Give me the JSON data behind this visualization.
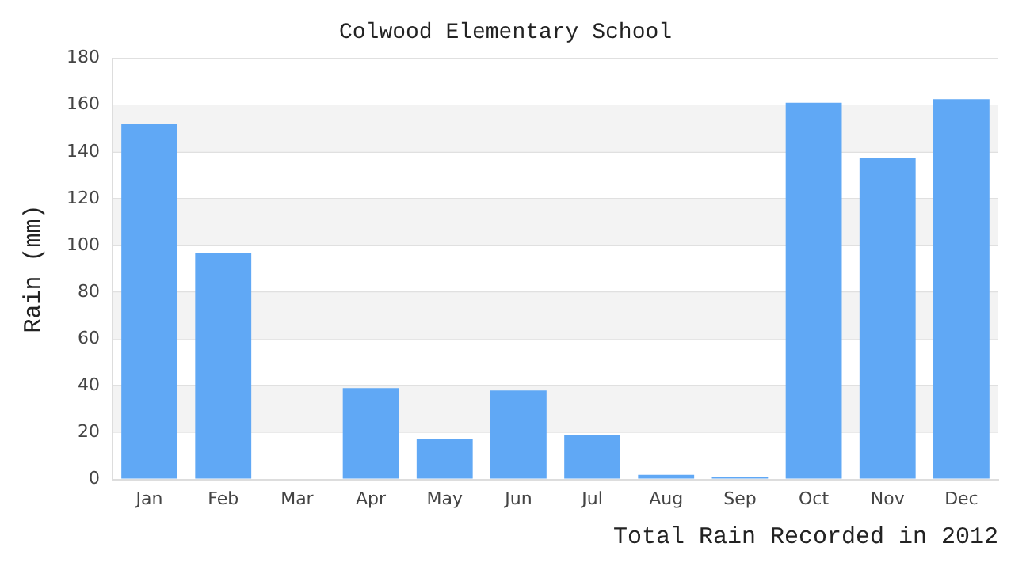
{
  "chart_data": {
    "type": "bar",
    "title": "Colwood Elementary School",
    "xlabel": "Total Rain Recorded in 2012",
    "ylabel": "Rain (mm)",
    "categories": [
      "Jan",
      "Feb",
      "Mar",
      "Apr",
      "May",
      "Jun",
      "Jul",
      "Aug",
      "Sep",
      "Oct",
      "Nov",
      "Dec"
    ],
    "values": [
      152,
      97,
      0,
      39,
      17.5,
      38,
      19,
      2,
      1,
      161,
      137.5,
      162.5
    ],
    "color": "#60a8f5",
    "ylim": [
      0,
      180
    ],
    "yticks": [
      0,
      20,
      40,
      60,
      80,
      100,
      120,
      140,
      160,
      180
    ],
    "grid": "y",
    "legend": false
  }
}
